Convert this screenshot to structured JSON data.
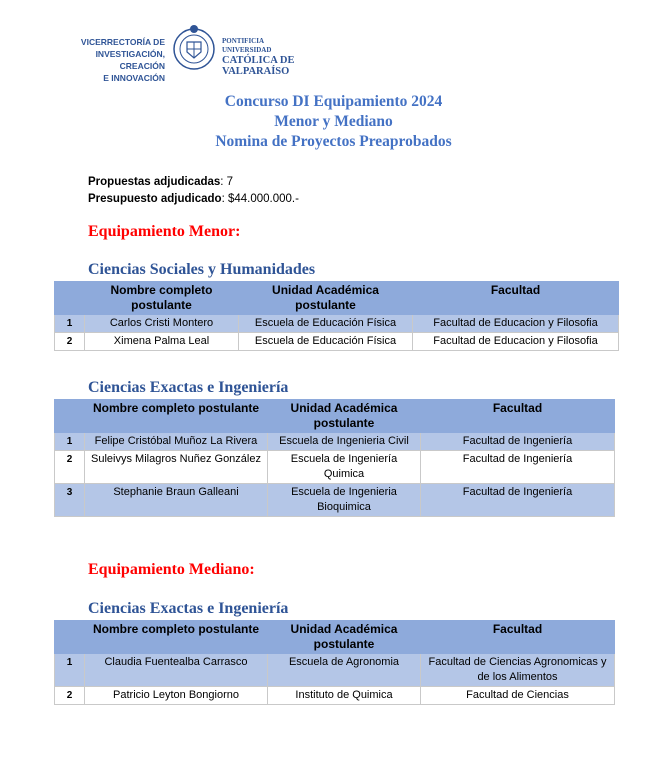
{
  "header": {
    "logo_left": [
      "VICERRECTORÍA DE",
      "INVESTIGACIÓN, CREACIÓN",
      "E INNOVACIÓN"
    ],
    "logo_right": [
      "PONTIFICIA",
      "UNIVERSIDAD",
      "CATÓLICA DE",
      "VALPARAÍSO"
    ]
  },
  "title": [
    "Concurso DI Equipamiento 2024",
    "Menor y Mediano",
    "Nomina de Proyectos Preaprobados"
  ],
  "summary": {
    "label1": "Propuestas adjudicadas",
    "value1": ": 7",
    "label2": "Presupuesto adjudicado",
    "value2": ": $44.000.000.-"
  },
  "colors": {
    "title": "#4472c4",
    "section": "#ff0000",
    "header_row": "#8eaadb",
    "odd_row": "#b4c6e7"
  },
  "sections": [
    {
      "heading": "Equipamiento Menor:",
      "groups": [
        {
          "title": "Ciencias Sociales y Humanidades",
          "columns": [
            "",
            "Nombre completo postulante",
            "Unidad Académica postulante",
            "Facultad"
          ],
          "rows": [
            [
              "1",
              "Carlos Cristi Montero",
              "Escuela de Educación Física",
              "Facultad de Educacion y Filosofia"
            ],
            [
              "2",
              "Ximena Palma Leal",
              "Escuela de Educación Física",
              "Facultad de Educacion y Filosofia"
            ]
          ]
        },
        {
          "title": "Ciencias Exactas e Ingeniería",
          "columns": [
            "",
            "Nombre completo postulante",
            "Unidad Académica postulante",
            "Facultad"
          ],
          "rows": [
            [
              "1",
              "Felipe Cristóbal Muñoz La Rivera",
              "Escuela de Ingenieria Civil",
              "Facultad de Ingeniería"
            ],
            [
              "2",
              "Suleivys Milagros Nuñez González",
              "Escuela de Ingeniería Quimica",
              "Facultad de Ingeniería"
            ],
            [
              "3",
              "Stephanie Braun Galleani",
              "Escuela de Ingenieria Bioquimica",
              "Facultad de Ingeniería"
            ]
          ]
        }
      ]
    },
    {
      "heading": "Equipamiento Mediano:",
      "groups": [
        {
          "title": "Ciencias Exactas e Ingeniería",
          "columns": [
            "",
            "Nombre completo postulante",
            "Unidad Académica postulante",
            "Facultad"
          ],
          "rows": [
            [
              "1",
              "Claudia Fuentealba Carrasco",
              "Escuela de Agronomia",
              "Facultad de Ciencias Agronomicas y de los Alimentos"
            ],
            [
              "2",
              "Patricio Leyton Bongiorno",
              "Instituto de Quimica",
              "Facultad de Ciencias"
            ]
          ]
        }
      ]
    }
  ]
}
